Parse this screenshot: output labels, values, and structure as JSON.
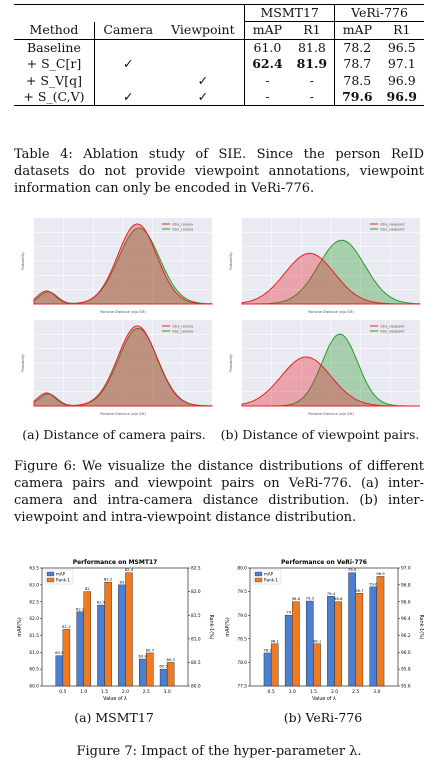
{
  "table": {
    "group_headers": [
      "MSMT17",
      "VeRi-776"
    ],
    "headers": [
      "Method",
      "Camera",
      "Viewpoint",
      "mAP",
      "R1",
      "mAP",
      "R1"
    ],
    "rows": [
      {
        "method": "Baseline",
        "camera": "",
        "viewpoint": "",
        "msmt_map": "61.0",
        "msmt_r1": "81.8",
        "veri_map": "78.2",
        "veri_r1": "96.5"
      },
      {
        "method": "+ S_C[r]",
        "camera": "✓",
        "viewpoint": "",
        "msmt_map": "62.4",
        "msmt_r1": "81.9",
        "veri_map": "78.7",
        "veri_r1": "97.1"
      },
      {
        "method": "+ S_V[q]",
        "camera": "",
        "viewpoint": "✓",
        "msmt_map": "-",
        "msmt_r1": "-",
        "veri_map": "78.5",
        "veri_r1": "96.9"
      },
      {
        "method": "+ S_(C,V)",
        "camera": "✓",
        "viewpoint": "✓",
        "msmt_map": "-",
        "msmt_r1": "-",
        "veri_map": "79.6",
        "veri_r1": "96.9"
      }
    ],
    "caption": "Table 4: Ablation study of SIE. Since the person ReID datasets do not provide viewpoint annotations, viewpoint information can only be encoded in VeRi-776."
  },
  "figure6": {
    "xlabel": "Pairwise Distance (w/o SIE)",
    "ylabel": "Probability",
    "legend_camera": [
      "intra_camera",
      "inter_camera"
    ],
    "legend_viewpoint": [
      "intra_viewpoint",
      "inter_viewpoint"
    ],
    "colors": {
      "red": "#e8202a",
      "green": "#2a9a2a"
    },
    "subcaption_a": "(a) Distance of camera pairs.",
    "subcaption_b": "(b) Distance of viewpoint pairs.",
    "caption": "Figure 6: We visualize the distance distributions of different camera pairs and viewpoint pairs on VeRi-776. (a) inter-camera and intra-camera distance distribution. (b) inter-viewpoint and intra-viewpoint distance distribution."
  },
  "chart_data": [
    {
      "type": "bar",
      "title": "Performance on MSMT17",
      "xlabel": "Value of λ",
      "ylabel": "mAP(%)",
      "ylabel_right": "Rank-1(%)",
      "categories": [
        "0.5",
        "1.0",
        "1.5",
        "2.0",
        "2.5",
        "3.0"
      ],
      "ylim": [
        60.0,
        63.5
      ],
      "ylim_right": [
        80.0,
        82.5
      ],
      "series": [
        {
          "name": "mAP",
          "color": "#4a7fd1",
          "values": [
            60.9,
            62.2,
            62.4,
            63.0,
            60.8,
            60.5
          ]
        },
        {
          "name": "Rank-1",
          "color": "#f07a22",
          "values": [
            81.2,
            82.0,
            82.2,
            82.4,
            80.7,
            80.5
          ]
        }
      ],
      "left_ticks": [
        "60.0",
        "60.5",
        "61.0",
        "61.5",
        "62.0",
        "62.5",
        "63.0",
        "63.5"
      ],
      "right_ticks": [
        "80.0",
        "80.5",
        "81.0",
        "81.5",
        "82.0",
        "82.5"
      ],
      "legend_position": "top-left"
    },
    {
      "type": "bar",
      "title": "Performance on VeRi-776",
      "xlabel": "Value of λ",
      "ylabel": "mAP(%)",
      "ylabel_right": "Rank-1(%)",
      "categories": [
        "0.5",
        "1.0",
        "1.5",
        "2.0",
        "2.5",
        "3.0"
      ],
      "ylim": [
        77.5,
        80.0
      ],
      "ylim_right": [
        95.6,
        97.0
      ],
      "series": [
        {
          "name": "mAP",
          "color": "#4a7fd1",
          "values": [
            78.2,
            79.0,
            79.3,
            79.4,
            79.9,
            79.6
          ]
        },
        {
          "name": "Rank-1",
          "color": "#f07a22",
          "values": [
            96.1,
            96.6,
            96.1,
            96.6,
            96.7,
            96.9
          ]
        }
      ],
      "left_ticks": [
        "77.5",
        "78.0",
        "78.5",
        "79.0",
        "79.5",
        "80.0"
      ],
      "right_ticks": [
        "95.6",
        "95.8",
        "96.0",
        "96.2",
        "96.4",
        "96.6",
        "96.8",
        "97.0"
      ],
      "legend_position": "top-left"
    }
  ],
  "figure7": {
    "subcaption_a": "(a) MSMT17",
    "subcaption_b": "(b) VeRi-776",
    "caption": "Figure 7: Impact of the hyper-parameter λ."
  }
}
